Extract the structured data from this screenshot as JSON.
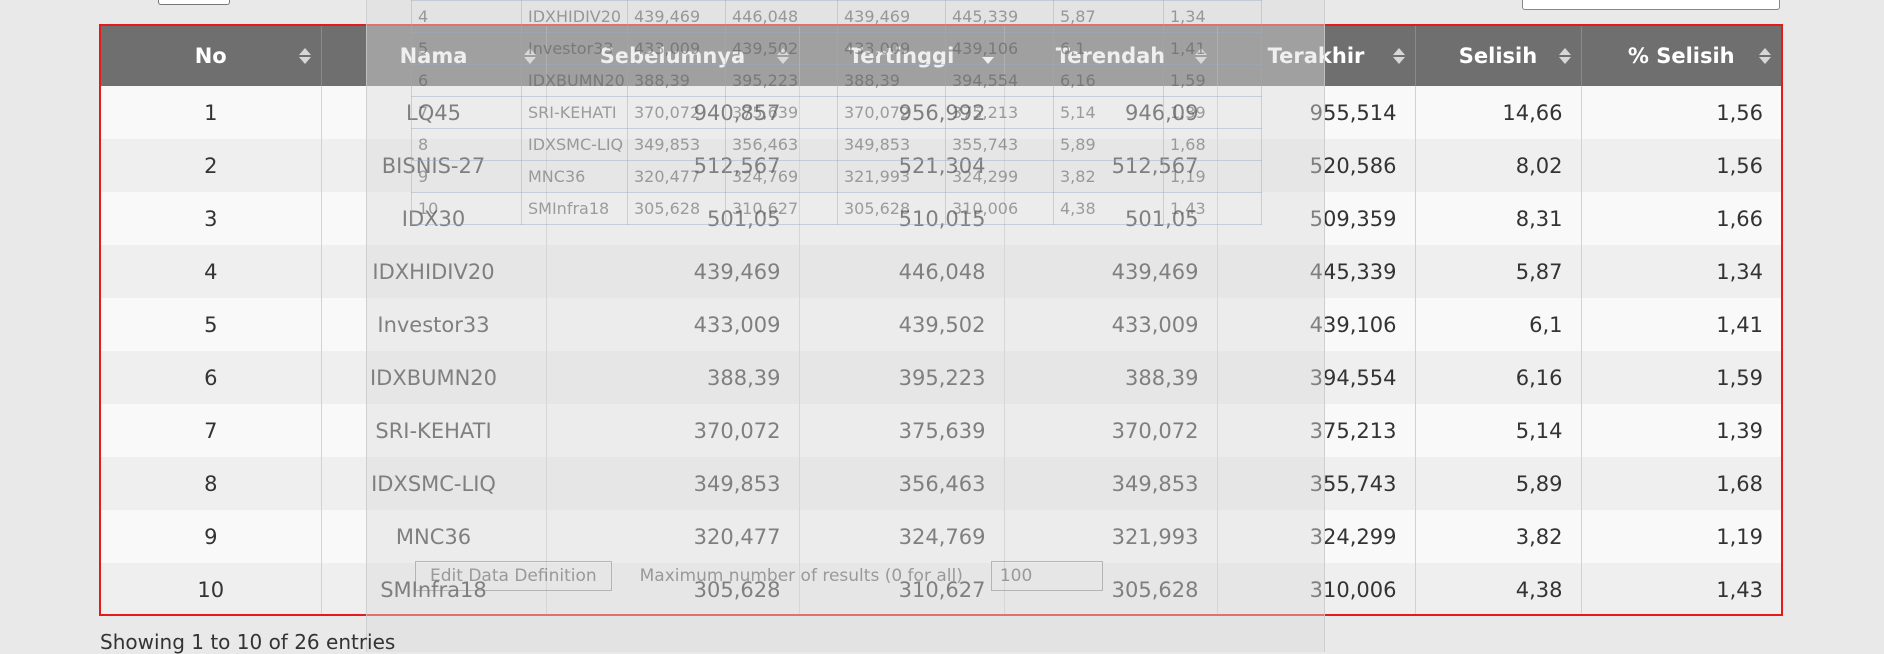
{
  "table": {
    "columns": [
      {
        "label": "No",
        "align": "center"
      },
      {
        "label": "Nama",
        "align": "center"
      },
      {
        "label": "Sebelumnya",
        "align": "right"
      },
      {
        "label": "Tertinggi",
        "align": "right"
      },
      {
        "label": "Terendah",
        "align": "right"
      },
      {
        "label": "Terakhir",
        "align": "right"
      },
      {
        "label": "Selisih",
        "align": "right"
      },
      {
        "label": "% Selisih",
        "align": "right"
      }
    ],
    "sorted_column": "Tertinggi",
    "rows": [
      [
        "1",
        "LQ45",
        "940,857",
        "956,992",
        "946,09",
        "955,514",
        "14,66",
        "1,56"
      ],
      [
        "2",
        "BISNIS-27",
        "512,567",
        "521,304",
        "512,567",
        "520,586",
        "8,02",
        "1,56"
      ],
      [
        "3",
        "IDX30",
        "501,05",
        "510,015",
        "501,05",
        "509,359",
        "8,31",
        "1,66"
      ],
      [
        "4",
        "IDXHIDIV20",
        "439,469",
        "446,048",
        "439,469",
        "445,339",
        "5,87",
        "1,34"
      ],
      [
        "5",
        "Investor33",
        "433,009",
        "439,502",
        "433,009",
        "439,106",
        "6,1",
        "1,41"
      ],
      [
        "6",
        "IDXBUMN20",
        "388,39",
        "395,223",
        "388,39",
        "394,554",
        "6,16",
        "1,59"
      ],
      [
        "7",
        "SRI-KEHATI",
        "370,072",
        "375,639",
        "370,072",
        "375,213",
        "5,14",
        "1,39"
      ],
      [
        "8",
        "IDXSMC-LIQ",
        "349,853",
        "356,463",
        "349,853",
        "355,743",
        "5,89",
        "1,68"
      ],
      [
        "9",
        "MNC36",
        "320,477",
        "324,769",
        "321,993",
        "324,299",
        "3,82",
        "1,19"
      ],
      [
        "10",
        "SMInfra18",
        "305,628",
        "310,627",
        "305,628",
        "310,006",
        "4,38",
        "1,43"
      ]
    ]
  },
  "overlay": {
    "rows": [
      [
        "4",
        "IDXHIDIV20",
        "439,469",
        "446,048",
        "439,469",
        "445,339",
        "5,87",
        "1,34"
      ],
      [
        "5",
        "Investor33",
        "433,009",
        "439,502",
        "433,009",
        "439,106",
        "6,1",
        "1,41"
      ],
      [
        "6",
        "IDXBUMN20",
        "388,39",
        "395,223",
        "388,39",
        "394,554",
        "6,16",
        "1,59"
      ],
      [
        "7",
        "SRI-KEHATI",
        "370,072",
        "375,639",
        "370,072",
        "375,213",
        "5,14",
        "1,39"
      ],
      [
        "8",
        "IDXSMC-LIQ",
        "349,853",
        "356,463",
        "349,853",
        "355,743",
        "5,89",
        "1,68"
      ],
      [
        "9",
        "MNC36",
        "320,477",
        "324,769",
        "321,993",
        "324,299",
        "3,82",
        "1,19"
      ],
      [
        "10",
        "SMInfra18",
        "305,628",
        "310,627",
        "305,628",
        "310,006",
        "4,38",
        "1,43"
      ]
    ],
    "edit_button": "Edit Data Definition",
    "max_results_label": "Maximum number of results (0 for all)",
    "max_results_value": "100"
  },
  "info": "Showing 1 to 10 of 26 entries",
  "colors": {
    "header_bg": "#6f6f6f",
    "highlight_border": "#e41b1b"
  }
}
